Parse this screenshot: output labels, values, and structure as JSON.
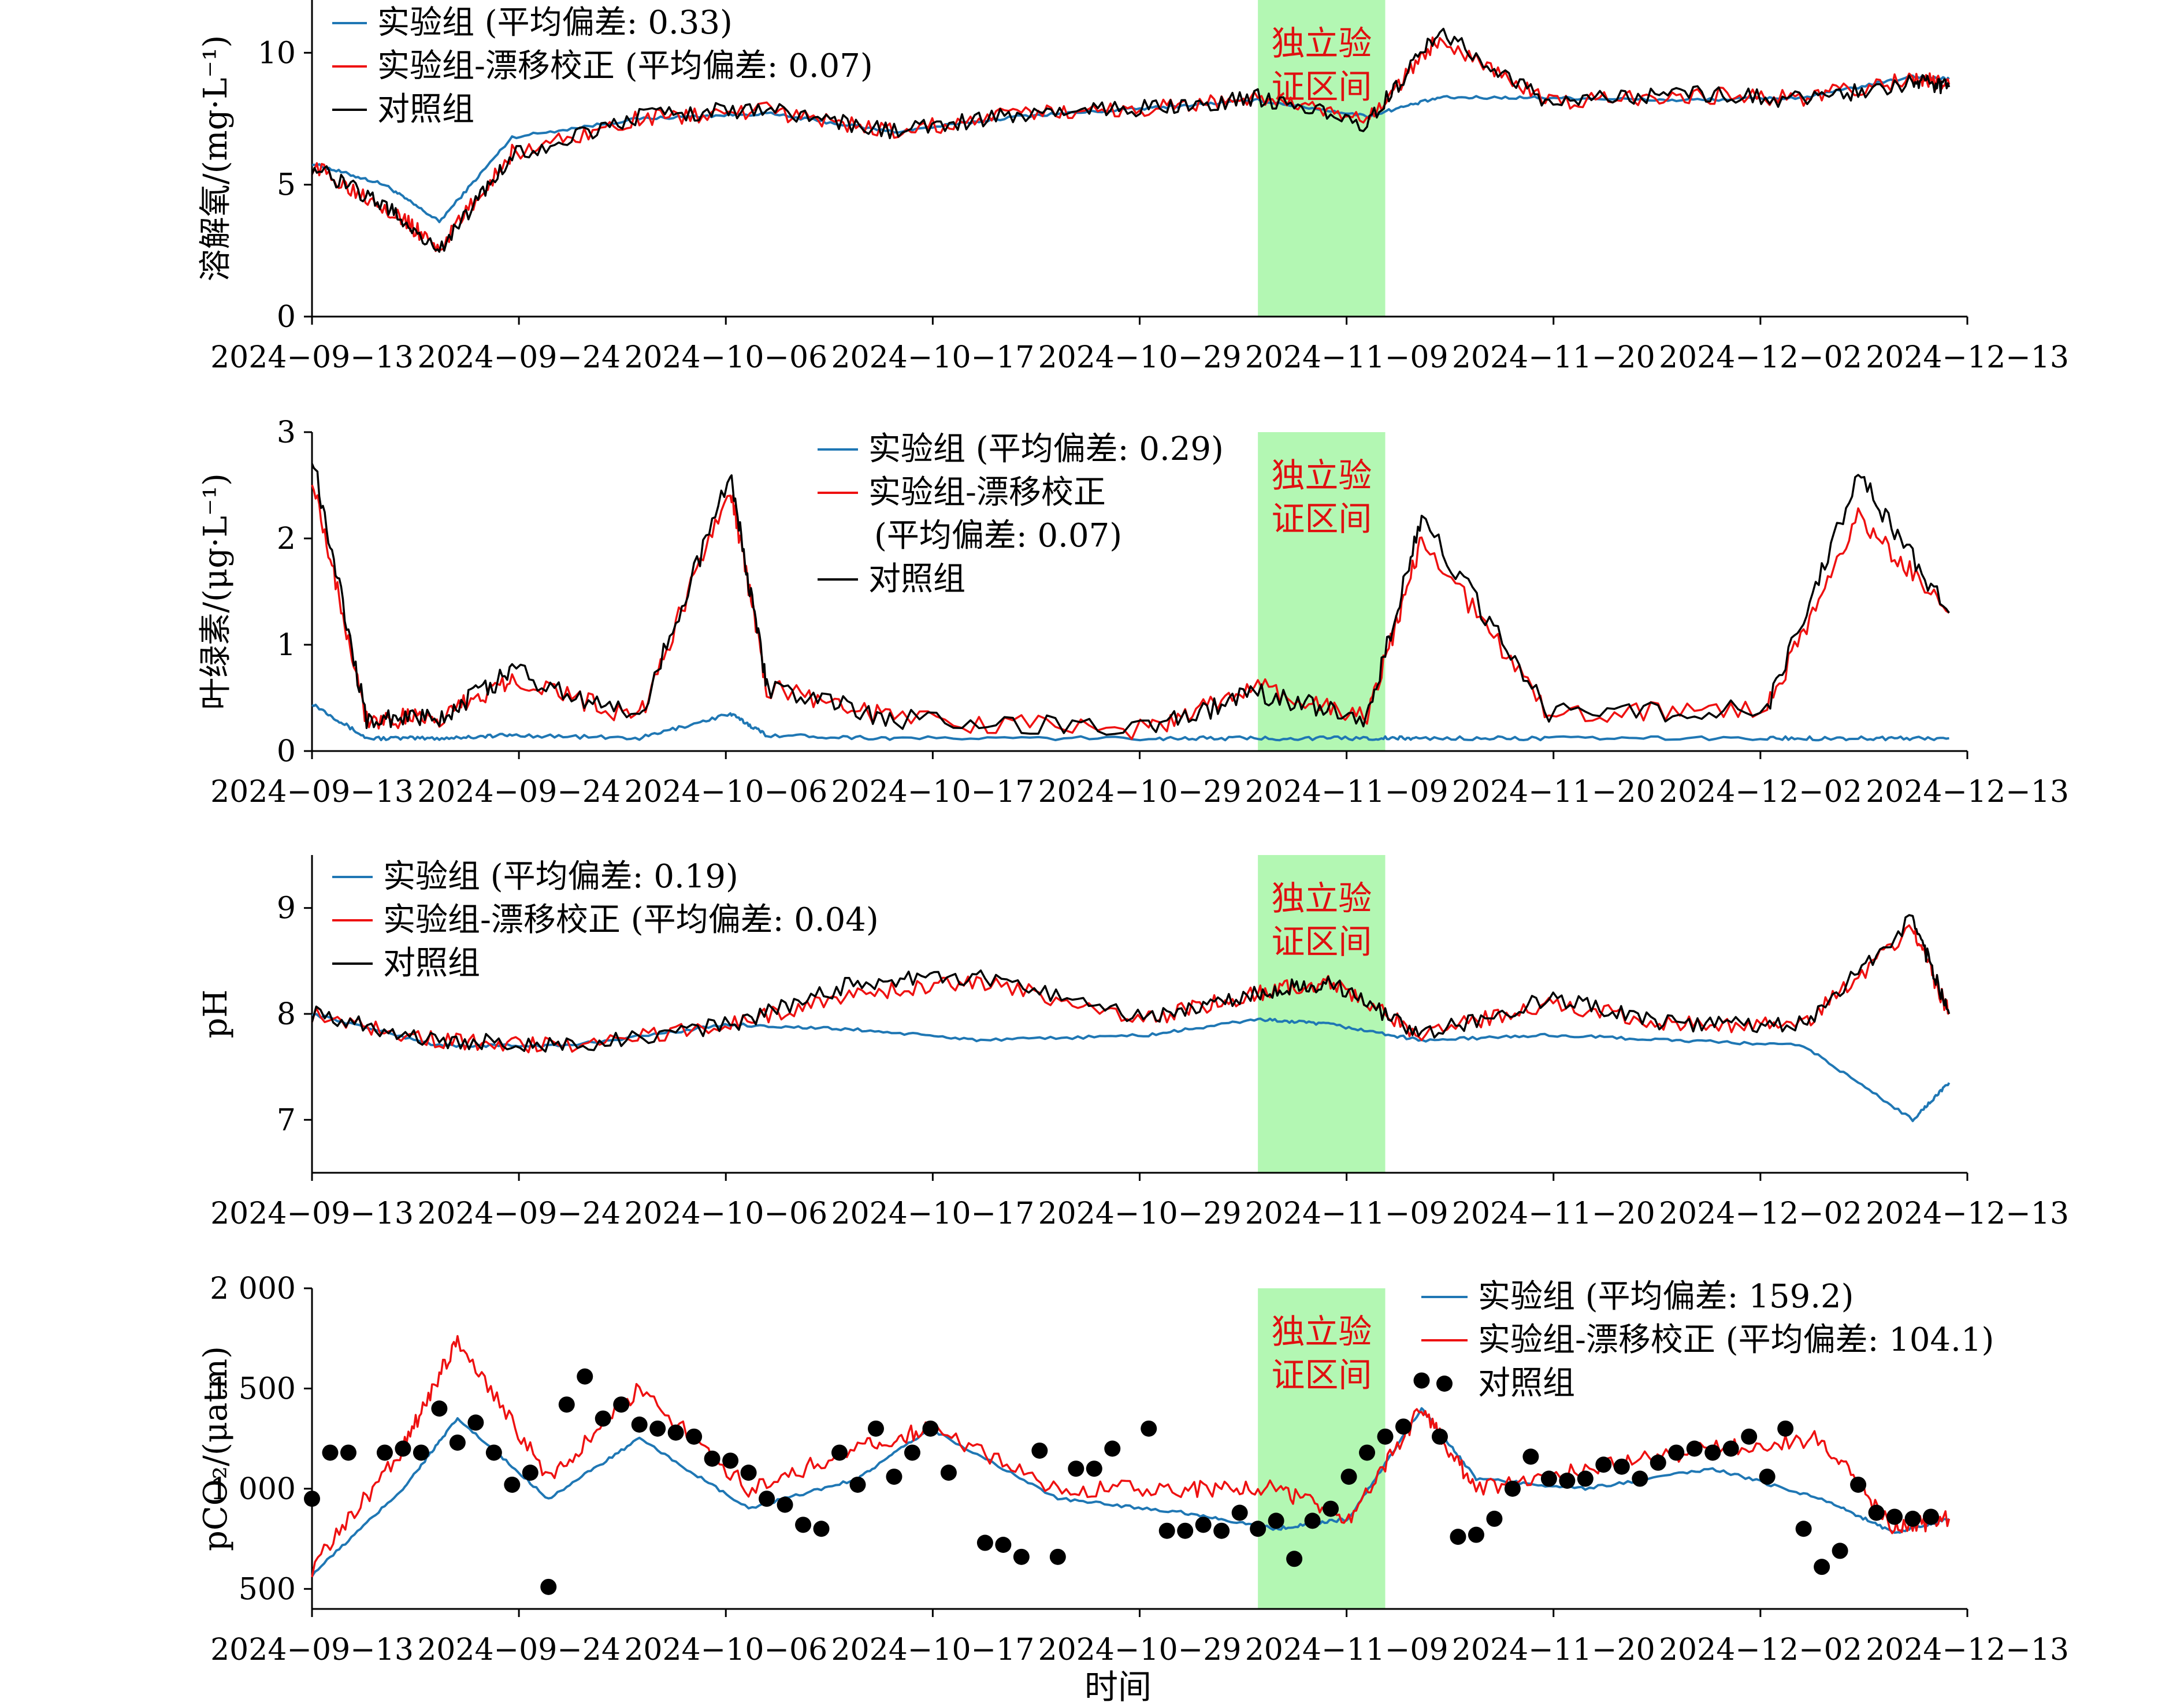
{
  "colors": {
    "experimental": "#1f77b4",
    "drift_corrected": "#ee1111",
    "control": "#000000",
    "validation_band": "#b3f7b3",
    "validation_text": "#e01010"
  },
  "validation_label": [
    "独立验",
    "证区间"
  ],
  "x_axis": {
    "tick_labels": [
      "2024−09−13",
      "2024−09−24",
      "2024−10−06",
      "2024−10−17",
      "2024−10−29",
      "2024−11−09",
      "2024−11−20",
      "2024−12−02",
      "2024−12−13"
    ],
    "xlabel": "时间",
    "validation_range": [
      "2024-11-04",
      "2024-11-11"
    ]
  },
  "chart_data": [
    {
      "type": "line",
      "ylabel": "溶解氧/(mg·L⁻¹)",
      "ylim": [
        0,
        12
      ],
      "yticks": [
        "0",
        "5",
        "10"
      ],
      "legend_position": "top-left",
      "legend": [
        "实验组 (平均偏差: 0.33)",
        "实验组-漂移校正 (平均偏差: 0.07)",
        "对照组"
      ],
      "x": [
        "2024-09-13",
        "2024-09-17",
        "2024-09-20",
        "2024-09-24",
        "2024-10-01",
        "2024-10-08",
        "2024-10-15",
        "2024-10-22",
        "2024-10-29",
        "2024-11-04",
        "2024-11-10",
        "2024-11-14",
        "2024-11-20",
        "2024-11-27",
        "2024-12-04",
        "2024-12-10",
        "2024-12-12"
      ],
      "series": [
        {
          "name": "实验组",
          "values": [
            5.8,
            5.0,
            3.6,
            6.8,
            7.5,
            7.7,
            7.0,
            7.6,
            7.9,
            8.2,
            7.6,
            8.3,
            8.3,
            8.2,
            8.3,
            9.1,
            9.0
          ]
        },
        {
          "name": "实验组-漂移校正",
          "values": [
            5.7,
            4.2,
            2.6,
            6.2,
            7.5,
            7.8,
            7.0,
            7.7,
            7.9,
            8.3,
            7.4,
            10.6,
            8.1,
            8.4,
            8.3,
            9.0,
            8.8
          ]
        },
        {
          "name": "对照组",
          "values": [
            5.7,
            4.2,
            2.5,
            6.1,
            7.6,
            7.9,
            7.0,
            7.7,
            7.9,
            8.3,
            7.3,
            10.8,
            8.1,
            8.5,
            8.2,
            8.9,
            8.7
          ]
        }
      ]
    },
    {
      "type": "line",
      "ylabel": "叶绿素/(μg·L⁻¹)",
      "ylim": [
        0,
        3
      ],
      "yticks": [
        "0",
        "1",
        "2",
        "3"
      ],
      "legend_position": "top-center",
      "legend": [
        "实验组 (平均偏差: 0.29)",
        "实验组-漂移校正",
        "(平均偏差: 0.07)",
        "对照组"
      ],
      "x": [
        "2024-09-13",
        "2024-09-16",
        "2024-09-20",
        "2024-09-24",
        "2024-10-01",
        "2024-10-06",
        "2024-10-08",
        "2024-10-15",
        "2024-10-29",
        "2024-11-04",
        "2024-11-10",
        "2024-11-13",
        "2024-11-20",
        "2024-12-02",
        "2024-12-07",
        "2024-12-12"
      ],
      "series": [
        {
          "name": "实验组",
          "values": [
            0.45,
            0.12,
            0.12,
            0.15,
            0.12,
            0.35,
            0.15,
            0.12,
            0.12,
            0.12,
            0.12,
            0.12,
            0.12,
            0.12,
            0.12,
            0.12
          ]
        },
        {
          "name": "实验组-漂移校正",
          "values": [
            2.6,
            0.3,
            0.3,
            0.7,
            0.3,
            2.5,
            0.6,
            0.3,
            0.2,
            0.6,
            0.3,
            2.0,
            0.35,
            0.4,
            2.2,
            1.3
          ]
        },
        {
          "name": "对照组",
          "values": [
            2.8,
            0.3,
            0.3,
            0.75,
            0.3,
            2.6,
            0.6,
            0.3,
            0.2,
            0.55,
            0.3,
            2.2,
            0.35,
            0.4,
            2.6,
            1.3
          ]
        }
      ]
    },
    {
      "type": "line",
      "ylabel": "pH",
      "ylim": [
        6.5,
        9.5
      ],
      "yticks": [
        "7",
        "8",
        "9"
      ],
      "legend_position": "top-left",
      "legend": [
        "实验组 (平均偏差: 0.19)",
        "实验组-漂移校正 (平均偏差: 0.04)",
        "对照组"
      ],
      "x": [
        "2024-09-13",
        "2024-09-20",
        "2024-09-27",
        "2024-10-06",
        "2024-10-13",
        "2024-10-20",
        "2024-10-29",
        "2024-11-04",
        "2024-11-08",
        "2024-11-13",
        "2024-11-20",
        "2024-11-27",
        "2024-12-04",
        "2024-12-10",
        "2024-12-12"
      ],
      "series": [
        {
          "name": "实验组",
          "values": [
            8.0,
            7.7,
            7.7,
            7.9,
            7.85,
            7.75,
            7.8,
            7.95,
            7.9,
            7.75,
            7.8,
            7.75,
            7.7,
            7.0,
            7.35
          ]
        },
        {
          "name": "实验组-漂移校正",
          "values": [
            8.0,
            7.75,
            7.7,
            7.9,
            8.2,
            8.3,
            7.95,
            8.2,
            8.3,
            7.8,
            8.1,
            7.9,
            7.9,
            8.8,
            8.0
          ]
        },
        {
          "name": "对照组",
          "values": [
            8.0,
            7.75,
            7.7,
            7.9,
            8.3,
            8.35,
            7.95,
            8.2,
            8.3,
            7.8,
            8.15,
            7.9,
            7.9,
            8.9,
            8.0
          ]
        }
      ]
    },
    {
      "type": "line",
      "ylabel": "pCO₂/(μatm)",
      "ylim": [
        400,
        2000
      ],
      "yticks": [
        "500",
        "1 000",
        "1 500",
        "2 000"
      ],
      "legend_position": "top-right",
      "legend": [
        "实验组 (平均偏差: 159.2)",
        "实验组-漂移校正 (平均偏差: 104.1)",
        "对照组"
      ],
      "x": [
        "2024-09-13",
        "2024-09-18",
        "2024-09-21",
        "2024-09-26",
        "2024-10-01",
        "2024-10-07",
        "2024-10-13",
        "2024-10-17",
        "2024-10-24",
        "2024-10-31",
        "2024-11-05",
        "2024-11-09",
        "2024-11-13",
        "2024-11-16",
        "2024-11-22",
        "2024-11-29",
        "2024-12-05",
        "2024-12-09",
        "2024-12-12"
      ],
      "series": [
        {
          "name": "实验组",
          "values": [
            570,
            1000,
            1350,
            950,
            1250,
            900,
            1050,
            1300,
            950,
            880,
            800,
            850,
            1400,
            1050,
            1000,
            1100,
            950,
            780,
            850
          ]
        },
        {
          "name": "实验组-漂移校正",
          "values": [
            600,
            1200,
            1750,
            1050,
            1500,
            1000,
            1200,
            1300,
            1000,
            1000,
            1000,
            850,
            1400,
            1000,
            1100,
            1200,
            1250,
            800,
            850
          ]
        }
      ],
      "control_points": {
        "name": "对照组",
        "x": [
          "2024-09-13",
          "2024-09-14",
          "2024-09-15",
          "2024-09-17",
          "2024-09-18",
          "2024-09-19",
          "2024-09-20",
          "2024-09-21",
          "2024-09-22",
          "2024-09-23",
          "2024-09-24",
          "2024-09-25",
          "2024-09-26",
          "2024-09-27",
          "2024-09-28",
          "2024-09-29",
          "2024-09-30",
          "2024-10-01",
          "2024-10-02",
          "2024-10-03",
          "2024-10-04",
          "2024-10-05",
          "2024-10-06",
          "2024-10-07",
          "2024-10-08",
          "2024-10-09",
          "2024-10-10",
          "2024-10-11",
          "2024-10-12",
          "2024-10-13",
          "2024-10-14",
          "2024-10-15",
          "2024-10-16",
          "2024-10-17",
          "2024-10-18",
          "2024-10-20",
          "2024-10-21",
          "2024-10-22",
          "2024-10-23",
          "2024-10-24",
          "2024-10-25",
          "2024-10-26",
          "2024-10-27",
          "2024-10-29",
          "2024-10-30",
          "2024-10-31",
          "2024-11-01",
          "2024-11-02",
          "2024-11-03",
          "2024-11-04",
          "2024-11-05",
          "2024-11-06",
          "2024-11-07",
          "2024-11-08",
          "2024-11-09",
          "2024-11-10",
          "2024-11-11",
          "2024-11-12",
          "2024-11-13",
          "2024-11-14",
          "2024-11-15",
          "2024-11-16",
          "2024-11-17",
          "2024-11-18",
          "2024-11-19",
          "2024-11-20",
          "2024-11-21",
          "2024-11-22",
          "2024-11-23",
          "2024-11-24",
          "2024-11-25",
          "2024-11-26",
          "2024-11-27",
          "2024-11-28",
          "2024-11-29",
          "2024-11-30",
          "2024-12-01",
          "2024-12-02",
          "2024-12-03",
          "2024-12-04",
          "2024-12-05",
          "2024-12-06",
          "2024-12-07",
          "2024-12-08",
          "2024-12-09",
          "2024-12-10",
          "2024-12-11"
        ],
        "values": [
          950,
          1180,
          1180,
          1180,
          1200,
          1180,
          1400,
          1230,
          1330,
          1180,
          1020,
          1080,
          510,
          1420,
          1560,
          1350,
          1420,
          1320,
          1300,
          1280,
          1260,
          1150,
          1140,
          1080,
          950,
          920,
          820,
          800,
          1180,
          1020,
          1300,
          1060,
          1180,
          1300,
          1080,
          730,
          720,
          660,
          1190,
          660,
          1100,
          1100,
          1200,
          1300,
          790,
          790,
          820,
          790,
          880,
          800,
          840,
          650,
          840,
          900,
          1060,
          1180,
          1260,
          1310,
          1540,
          1260,
          760,
          770,
          850,
          1000,
          1160,
          1050,
          1040,
          1050,
          1120,
          1110,
          1050,
          1130,
          1180,
          1200,
          1180,
          1200,
          1260,
          1060,
          1300,
          800,
          610,
          690,
          1020,
          880,
          860,
          850,
          860
        ]
      }
    }
  ]
}
